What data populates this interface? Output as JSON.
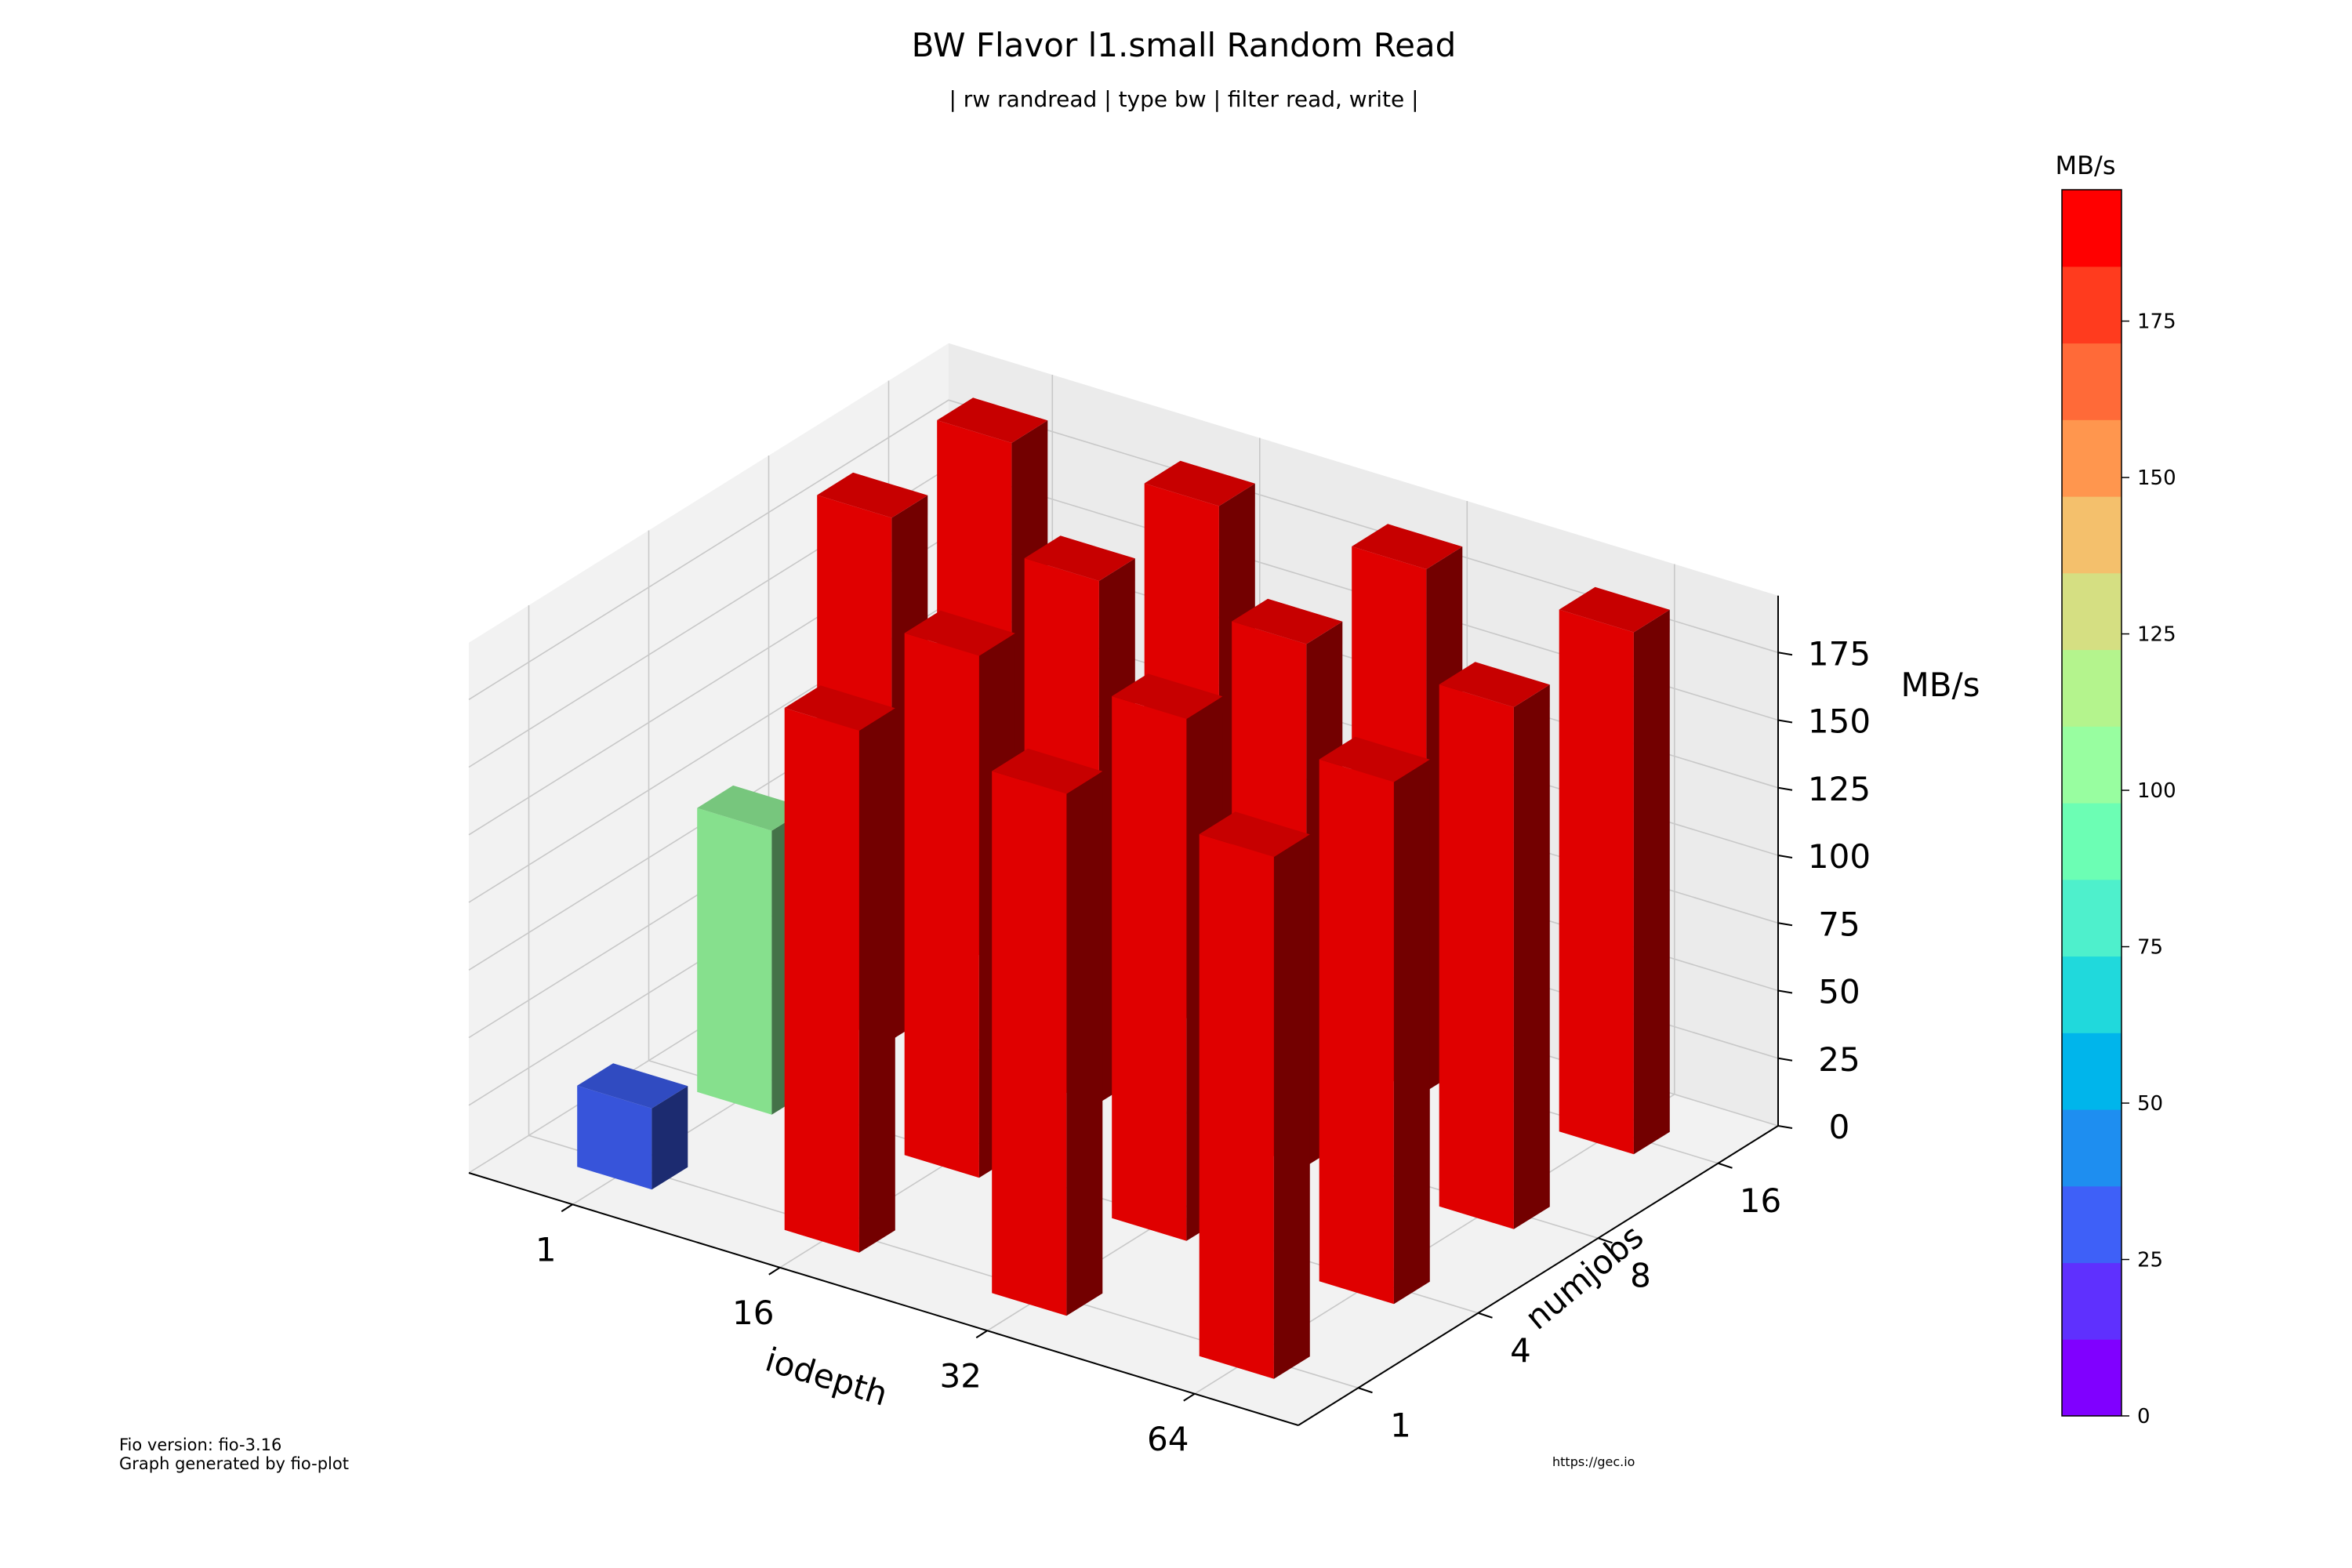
{
  "chart_data": {
    "type": "bar3d",
    "title": "BW Flavor l1.small Random Read",
    "subtitle": "| rw randread | type bw | filter read, write |",
    "xlabel": "iodepth",
    "ylabel": "numjobs",
    "zlabel": "MB/s",
    "x_categories": [
      "1",
      "16",
      "32",
      "64"
    ],
    "y_categories": [
      "1",
      "4",
      "8",
      "16"
    ],
    "zlim": [
      0,
      196
    ],
    "z_ticks": [
      0,
      25,
      50,
      75,
      100,
      125,
      150,
      175
    ],
    "values": [
      {
        "iodepth": "1",
        "numjobs": "1",
        "value": 30
      },
      {
        "iodepth": "1",
        "numjobs": "4",
        "value": 105
      },
      {
        "iodepth": "1",
        "numjobs": "8",
        "value": 193
      },
      {
        "iodepth": "1",
        "numjobs": "16",
        "value": 193
      },
      {
        "iodepth": "16",
        "numjobs": "1",
        "value": 193
      },
      {
        "iodepth": "16",
        "numjobs": "4",
        "value": 193
      },
      {
        "iodepth": "16",
        "numjobs": "8",
        "value": 193
      },
      {
        "iodepth": "16",
        "numjobs": "16",
        "value": 193
      },
      {
        "iodepth": "32",
        "numjobs": "1",
        "value": 193
      },
      {
        "iodepth": "32",
        "numjobs": "4",
        "value": 193
      },
      {
        "iodepth": "32",
        "numjobs": "8",
        "value": 193
      },
      {
        "iodepth": "32",
        "numjobs": "16",
        "value": 193
      },
      {
        "iodepth": "64",
        "numjobs": "1",
        "value": 193
      },
      {
        "iodepth": "64",
        "numjobs": "4",
        "value": 193
      },
      {
        "iodepth": "64",
        "numjobs": "8",
        "value": 193
      },
      {
        "iodepth": "64",
        "numjobs": "16",
        "value": 193
      }
    ],
    "colorbar": {
      "label": "MB/s",
      "range": [
        0,
        196
      ],
      "ticks": [
        0,
        25,
        50,
        75,
        100,
        125,
        150,
        175
      ],
      "colors": [
        "#8000ff",
        "#5f30fe",
        "#3e60f8",
        "#1e8ef0",
        "#00b5eb",
        "#20d9dc",
        "#4ef0cc",
        "#6cfeb4",
        "#98fea0",
        "#b4f48d",
        "#d5df82",
        "#f4c06c",
        "#ff964e",
        "#ff6a38",
        "#ff3b1e",
        "#ff0000"
      ]
    },
    "grid": true
  },
  "footer": {
    "fio_version": "Fio version: fio-3.16",
    "generated_by": "Graph generated by fio-plot",
    "url": "https://gec.io"
  }
}
